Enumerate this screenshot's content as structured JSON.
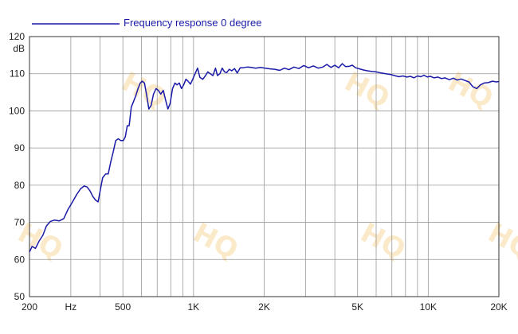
{
  "chart_data": {
    "type": "line",
    "xscale": "log",
    "xlim": [
      200,
      20000
    ],
    "ylim": [
      50,
      120
    ],
    "ylabel": "dB",
    "x_ticks": [
      {
        "value": 200,
        "label": "200"
      },
      {
        "value": 300,
        "label": "Hz"
      },
      {
        "value": 500,
        "label": "500"
      },
      {
        "value": 1000,
        "label": "1K"
      },
      {
        "value": 2000,
        "label": "2K"
      },
      {
        "value": 5000,
        "label": "5K"
      },
      {
        "value": 10000,
        "label": "10K"
      },
      {
        "value": 20000,
        "label": "20K"
      }
    ],
    "y_ticks": [
      50,
      60,
      70,
      80,
      90,
      100,
      110,
      120
    ],
    "grid": true,
    "legend_position": "top-left",
    "color": "#1a1aa8",
    "series": [
      {
        "name": "Frequency response 0 degree",
        "points": [
          [
            200,
            62
          ],
          [
            205,
            63.5
          ],
          [
            212,
            63
          ],
          [
            220,
            65
          ],
          [
            228,
            66.5
          ],
          [
            236,
            69
          ],
          [
            245,
            70.2
          ],
          [
            255,
            70.6
          ],
          [
            268,
            70.4
          ],
          [
            280,
            71
          ],
          [
            292,
            73.5
          ],
          [
            305,
            75.5
          ],
          [
            318,
            77.5
          ],
          [
            330,
            79
          ],
          [
            342,
            79.8
          ],
          [
            352,
            79.5
          ],
          [
            362,
            78.5
          ],
          [
            372,
            77
          ],
          [
            382,
            76
          ],
          [
            392,
            75.5
          ],
          [
            400,
            78.5
          ],
          [
            410,
            82
          ],
          [
            422,
            83
          ],
          [
            433,
            83
          ],
          [
            443,
            86
          ],
          [
            455,
            89
          ],
          [
            466,
            92
          ],
          [
            478,
            92.5
          ],
          [
            490,
            92
          ],
          [
            502,
            92
          ],
          [
            512,
            93
          ],
          [
            522,
            96
          ],
          [
            532,
            96
          ],
          [
            543,
            101
          ],
          [
            555,
            102.5
          ],
          [
            567,
            104
          ],
          [
            580,
            106
          ],
          [
            593,
            107.5
          ],
          [
            605,
            108
          ],
          [
            618,
            107.5
          ],
          [
            632,
            104
          ],
          [
            645,
            100.5
          ],
          [
            660,
            101.5
          ],
          [
            675,
            104.5
          ],
          [
            692,
            106
          ],
          [
            708,
            105.5
          ],
          [
            725,
            104.5
          ],
          [
            743,
            105.5
          ],
          [
            760,
            103
          ],
          [
            778,
            100.5
          ],
          [
            795,
            102
          ],
          [
            814,
            106
          ],
          [
            833,
            107.5
          ],
          [
            850,
            107
          ],
          [
            870,
            107.5
          ],
          [
            888,
            106
          ],
          [
            908,
            107
          ],
          [
            928,
            108.5
          ],
          [
            948,
            108
          ],
          [
            970,
            107.2
          ],
          [
            992,
            108.5
          ],
          [
            1015,
            110
          ],
          [
            1040,
            111.5
          ],
          [
            1065,
            109
          ],
          [
            1095,
            108.5
          ],
          [
            1125,
            109.5
          ],
          [
            1150,
            110.5
          ],
          [
            1180,
            110
          ],
          [
            1210,
            109.5
          ],
          [
            1240,
            111.5
          ],
          [
            1265,
            109.5
          ],
          [
            1295,
            110
          ],
          [
            1325,
            111.5
          ],
          [
            1355,
            110.5
          ],
          [
            1385,
            110.3
          ],
          [
            1420,
            111.2
          ],
          [
            1455,
            110.8
          ],
          [
            1495,
            111.4
          ],
          [
            1535,
            110.2
          ],
          [
            1580,
            111.6
          ],
          [
            1630,
            111.6
          ],
          [
            1690,
            111.8
          ],
          [
            1760,
            111.7
          ],
          [
            1840,
            111.5
          ],
          [
            1930,
            111.7
          ],
          [
            2020,
            111.5
          ],
          [
            2120,
            111.3
          ],
          [
            2220,
            111.2
          ],
          [
            2330,
            110.9
          ],
          [
            2440,
            111.5
          ],
          [
            2550,
            111.1
          ],
          [
            2680,
            111.8
          ],
          [
            2810,
            111.4
          ],
          [
            2950,
            112.2
          ],
          [
            3090,
            111.6
          ],
          [
            3240,
            112.1
          ],
          [
            3400,
            111.5
          ],
          [
            3560,
            111.8
          ],
          [
            3700,
            112.5
          ],
          [
            3850,
            111.7
          ],
          [
            4000,
            112.3
          ],
          [
            4150,
            111.6
          ],
          [
            4300,
            112.7
          ],
          [
            4450,
            111.9
          ],
          [
            4600,
            112
          ],
          [
            4750,
            112.3
          ],
          [
            4900,
            111.6
          ],
          [
            5100,
            111.3
          ],
          [
            5300,
            111
          ],
          [
            5500,
            110.8
          ],
          [
            5750,
            110.6
          ],
          [
            6000,
            110.5
          ],
          [
            6300,
            110.2
          ],
          [
            6600,
            110
          ],
          [
            6900,
            109.8
          ],
          [
            7200,
            109.5
          ],
          [
            7500,
            109.2
          ],
          [
            7800,
            109.4
          ],
          [
            8100,
            109.1
          ],
          [
            8400,
            109.3
          ],
          [
            8700,
            108.9
          ],
          [
            9000,
            109.4
          ],
          [
            9300,
            109.2
          ],
          [
            9600,
            109.6
          ],
          [
            9900,
            109.1
          ],
          [
            10200,
            109.3
          ],
          [
            10600,
            108.9
          ],
          [
            11000,
            109.1
          ],
          [
            11400,
            108.7
          ],
          [
            11800,
            108.9
          ],
          [
            12300,
            108.4
          ],
          [
            12800,
            108.8
          ],
          [
            13300,
            108.3
          ],
          [
            13800,
            108.6
          ],
          [
            14300,
            108.2
          ],
          [
            14900,
            107.8
          ],
          [
            15500,
            106.5
          ],
          [
            16100,
            106
          ],
          [
            16700,
            107
          ],
          [
            17300,
            107.5
          ],
          [
            18000,
            107.6
          ],
          [
            18800,
            108
          ],
          [
            19500,
            107.8
          ],
          [
            20000,
            107.9
          ]
        ]
      }
    ]
  }
}
